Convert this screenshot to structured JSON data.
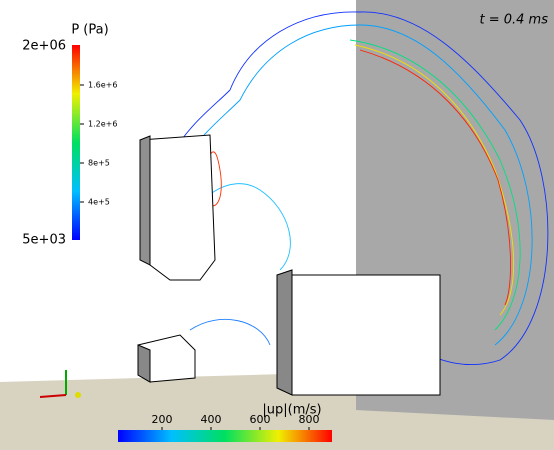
{
  "time_label": "t = 0.4 ms",
  "pressure_legend": {
    "title": "P (Pa)",
    "max_label": "2e+06",
    "min_label": "5e+03",
    "tick_labels": [
      "1.6e+6",
      "1.2e+6",
      "8e+5",
      "4e+5"
    ]
  },
  "velocity_legend": {
    "title": "|up|(m/s)",
    "tick_labels": [
      "200",
      "400",
      "600",
      "800"
    ]
  }
}
